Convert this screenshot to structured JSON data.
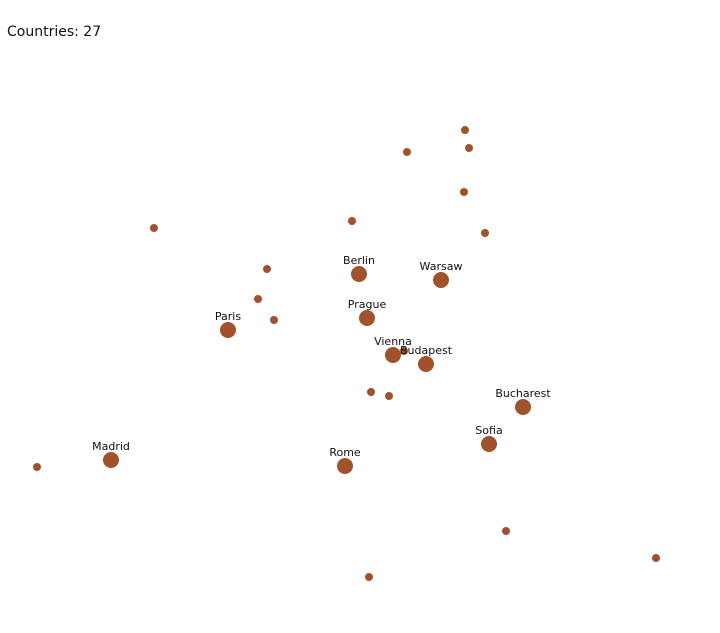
{
  "header": {
    "count_text": "Countries: 27"
  },
  "style": {
    "marker_color": "#a0522d"
  },
  "map": {
    "capitals": [
      {
        "name": "Berlin"
      },
      {
        "name": "Warsaw"
      },
      {
        "name": "Prague"
      },
      {
        "name": "Paris"
      },
      {
        "name": "Vienna"
      },
      {
        "name": "Budapest"
      },
      {
        "name": "Bucharest"
      },
      {
        "name": "Sofia"
      },
      {
        "name": "Madrid"
      },
      {
        "name": "Rome"
      }
    ],
    "minor_point_count": 17
  }
}
